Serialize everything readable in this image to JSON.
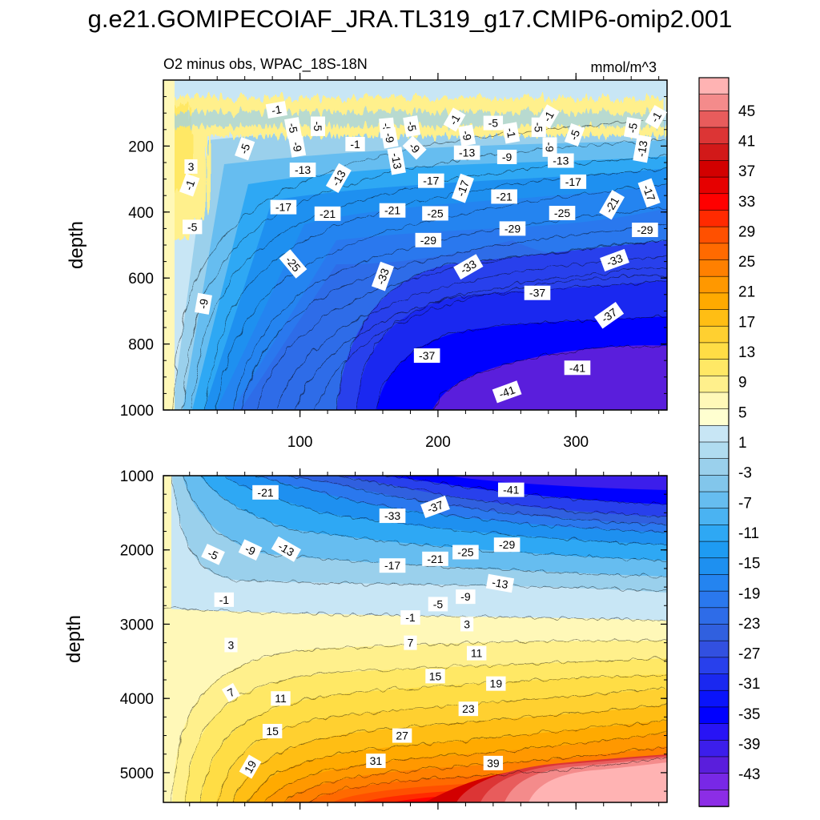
{
  "title": "g.e21.GOMIPECOIAF_JRA.TL319_g17.CMIP6-omip2.001",
  "chart_data": [
    {
      "type": "contour",
      "panel": "upper",
      "left_title": "O2 minus obs, WPAC_18S-18N",
      "right_title": "mmol/m^3",
      "ylabel": "depth",
      "xlabel": "",
      "xlim": [
        1,
        366
      ],
      "ylim": [
        1000,
        0
      ],
      "x_ticks": [
        100,
        200,
        300
      ],
      "y_ticks": [
        200,
        400,
        600,
        800,
        1000
      ],
      "y_tick_labels": [
        "200",
        "400",
        "600",
        "800",
        "1000"
      ],
      "x_tick_labels": [
        "100",
        "200",
        "300"
      ],
      "contour_labels": [
        {
          "text": "-1",
          "x": 83,
          "y": 90,
          "angle": -10
        },
        {
          "text": "-5",
          "x": 240,
          "y": 130,
          "angle": 0
        },
        {
          "text": "-1",
          "x": 212,
          "y": 120,
          "angle": -60
        },
        {
          "text": "-1",
          "x": 280,
          "y": 110,
          "angle": -60
        },
        {
          "text": "-1",
          "x": 358,
          "y": 112,
          "angle": -60
        },
        {
          "text": "-5",
          "x": 95,
          "y": 145,
          "angle": 80
        },
        {
          "text": "-5",
          "x": 113,
          "y": 140,
          "angle": 90
        },
        {
          "text": "-5",
          "x": 163,
          "y": 145,
          "angle": 85
        },
        {
          "text": "-5",
          "x": 181,
          "y": 140,
          "angle": 80
        },
        {
          "text": "-9",
          "x": 165,
          "y": 175,
          "angle": 80
        },
        {
          "text": "-5",
          "x": 273,
          "y": 143,
          "angle": 90
        },
        {
          "text": "-1",
          "x": 253,
          "y": 160,
          "angle": 80
        },
        {
          "text": "-5",
          "x": 299,
          "y": 166,
          "angle": -70
        },
        {
          "text": "-5",
          "x": 341,
          "y": 145,
          "angle": -80
        },
        {
          "text": "-9",
          "x": 221,
          "y": 168,
          "angle": 80
        },
        {
          "text": "-9",
          "x": 98,
          "y": 202,
          "angle": 80
        },
        {
          "text": "-1",
          "x": 140,
          "y": 194,
          "angle": 0
        },
        {
          "text": "-9",
          "x": 183,
          "y": 205,
          "angle": 45
        },
        {
          "text": "-5",
          "x": 60,
          "y": 208,
          "angle": -70
        },
        {
          "text": "-9",
          "x": 281,
          "y": 203,
          "angle": 90
        },
        {
          "text": "-13",
          "x": 170,
          "y": 245,
          "angle": 80
        },
        {
          "text": "-13",
          "x": 221,
          "y": 220,
          "angle": 0
        },
        {
          "text": "-9",
          "x": 250,
          "y": 233,
          "angle": 0
        },
        {
          "text": "-13",
          "x": 289,
          "y": 244,
          "angle": 0
        },
        {
          "text": "-13",
          "x": 348,
          "y": 208,
          "angle": -80
        },
        {
          "text": "3",
          "x": 21,
          "y": 262,
          "angle": 0
        },
        {
          "text": "-1",
          "x": 20,
          "y": 318,
          "angle": -70
        },
        {
          "text": "-13",
          "x": 102,
          "y": 272,
          "angle": 0
        },
        {
          "text": "-13",
          "x": 128,
          "y": 297,
          "angle": -60
        },
        {
          "text": "-17",
          "x": 195,
          "y": 305,
          "angle": 0
        },
        {
          "text": "-17",
          "x": 218,
          "y": 328,
          "angle": -70
        },
        {
          "text": "-17",
          "x": 298,
          "y": 308,
          "angle": 0
        },
        {
          "text": "-17",
          "x": 353,
          "y": 342,
          "angle": 70
        },
        {
          "text": "-21",
          "x": 248,
          "y": 353,
          "angle": 0
        },
        {
          "text": "-17",
          "x": 88,
          "y": 385,
          "angle": 0
        },
        {
          "text": "-21",
          "x": 120,
          "y": 405,
          "angle": 0
        },
        {
          "text": "-21",
          "x": 167,
          "y": 395,
          "angle": 0
        },
        {
          "text": "-25",
          "x": 198,
          "y": 404,
          "angle": 0
        },
        {
          "text": "-25",
          "x": 290,
          "y": 403,
          "angle": 0
        },
        {
          "text": "-21",
          "x": 326,
          "y": 378,
          "angle": -60
        },
        {
          "text": "-5",
          "x": 22,
          "y": 445,
          "angle": 0
        },
        {
          "text": "-29",
          "x": 193,
          "y": 485,
          "angle": 0
        },
        {
          "text": "-29",
          "x": 254,
          "y": 450,
          "angle": 0
        },
        {
          "text": "-29",
          "x": 350,
          "y": 454,
          "angle": 0
        },
        {
          "text": "-25",
          "x": 95,
          "y": 557,
          "angle": 50
        },
        {
          "text": "-33",
          "x": 160,
          "y": 595,
          "angle": -70
        },
        {
          "text": "-33",
          "x": 222,
          "y": 566,
          "angle": -30
        },
        {
          "text": "-33",
          "x": 328,
          "y": 546,
          "angle": -20
        },
        {
          "text": "-9",
          "x": 30,
          "y": 678,
          "angle": -80
        },
        {
          "text": "-37",
          "x": 272,
          "y": 645,
          "angle": 0
        },
        {
          "text": "-37",
          "x": 324,
          "y": 713,
          "angle": -35
        },
        {
          "text": "-37",
          "x": 192,
          "y": 835,
          "angle": 0
        },
        {
          "text": "-41",
          "x": 301,
          "y": 872,
          "angle": 0
        },
        {
          "text": "-41",
          "x": 250,
          "y": 945,
          "angle": -20
        }
      ]
    },
    {
      "type": "contour",
      "panel": "lower",
      "left_title": "",
      "right_title": "",
      "ylabel": "depth",
      "xlabel": "",
      "xlim": [
        1,
        366
      ],
      "ylim": [
        5400,
        1000
      ],
      "x_ticks": [
        100,
        200,
        300
      ],
      "y_ticks": [
        1000,
        2000,
        3000,
        4000,
        5000
      ],
      "y_tick_labels": [
        "1000",
        "2000",
        "3000",
        "4000",
        "5000"
      ],
      "contour_labels": [
        {
          "text": "-41",
          "x": 253,
          "y": 1190,
          "angle": 0
        },
        {
          "text": "-21",
          "x": 75,
          "y": 1225,
          "angle": 0
        },
        {
          "text": "-37",
          "x": 198,
          "y": 1420,
          "angle": -20
        },
        {
          "text": "-33",
          "x": 167,
          "y": 1540,
          "angle": 0
        },
        {
          "text": "-29",
          "x": 250,
          "y": 1930,
          "angle": 0
        },
        {
          "text": "-25",
          "x": 220,
          "y": 2030,
          "angle": 0
        },
        {
          "text": "-21",
          "x": 198,
          "y": 2120,
          "angle": 0
        },
        {
          "text": "-5",
          "x": 37,
          "y": 2060,
          "angle": 25
        },
        {
          "text": "-9",
          "x": 64,
          "y": 2000,
          "angle": 25
        },
        {
          "text": "-13",
          "x": 90,
          "y": 1990,
          "angle": 30
        },
        {
          "text": "-17",
          "x": 167,
          "y": 2210,
          "angle": 0
        },
        {
          "text": "-13",
          "x": 245,
          "y": 2450,
          "angle": 10
        },
        {
          "text": "-9",
          "x": 220,
          "y": 2630,
          "angle": 0
        },
        {
          "text": "-5",
          "x": 200,
          "y": 2730,
          "angle": 0
        },
        {
          "text": "-1",
          "x": 45,
          "y": 2670,
          "angle": 0
        },
        {
          "text": "-1",
          "x": 180,
          "y": 2910,
          "angle": 0
        },
        {
          "text": "3",
          "x": 221,
          "y": 3000,
          "angle": 0
        },
        {
          "text": "3",
          "x": 50,
          "y": 3280,
          "angle": 0
        },
        {
          "text": "7",
          "x": 180,
          "y": 3250,
          "angle": 0
        },
        {
          "text": "11",
          "x": 228,
          "y": 3390,
          "angle": 0
        },
        {
          "text": "15",
          "x": 198,
          "y": 3700,
          "angle": 0
        },
        {
          "text": "19",
          "x": 242,
          "y": 3800,
          "angle": 0
        },
        {
          "text": "7",
          "x": 50,
          "y": 3920,
          "angle": -30
        },
        {
          "text": "11",
          "x": 86,
          "y": 4000,
          "angle": 0
        },
        {
          "text": "23",
          "x": 222,
          "y": 4140,
          "angle": 0
        },
        {
          "text": "15",
          "x": 80,
          "y": 4440,
          "angle": 0
        },
        {
          "text": "27",
          "x": 174,
          "y": 4500,
          "angle": 0
        },
        {
          "text": "31",
          "x": 155,
          "y": 4840,
          "angle": 0
        },
        {
          "text": "39",
          "x": 240,
          "y": 4870,
          "angle": 0
        },
        {
          "text": "19",
          "x": 64,
          "y": 4920,
          "angle": -60
        }
      ]
    }
  ],
  "colorbar": {
    "levels": [
      45,
      41,
      37,
      33,
      29,
      25,
      21,
      17,
      13,
      9,
      5,
      1,
      -3,
      -7,
      -11,
      -15,
      -19,
      -23,
      -27,
      -31,
      -35,
      -39,
      -43
    ],
    "labels": [
      "45",
      "41",
      "37",
      "33",
      "29",
      "25",
      "21",
      "17",
      "13",
      "9",
      "5",
      "1",
      "-3",
      "-7",
      "-11",
      "-15",
      "-19",
      "-23",
      "-27",
      "-31",
      "-35",
      "-39",
      "-43"
    ],
    "colors": [
      "#FFB3B3",
      "#F48B8B",
      "#E85C5C",
      "#DC3535",
      "#D21919",
      "#D20000",
      "#E60000",
      "#FF0000",
      "#FF2A00",
      "#FF5000",
      "#FF6A00",
      "#FF8000",
      "#FF9800",
      "#FFAA00",
      "#FFBE14",
      "#FFD030",
      "#FFDD45",
      "#FFE865",
      "#FFF08C",
      "#FFF8B8",
      "#FFFFD0",
      "#C8E6F5",
      "#B0DCF0",
      "#9AD0EC",
      "#82C6EB",
      "#66BDF0",
      "#4AB3F2",
      "#2EA8F4",
      "#1E9BF2",
      "#1E90F0",
      "#2484F0",
      "#2A78EE",
      "#2E6CE8",
      "#3060DF",
      "#3250E0",
      "#2840EC",
      "#1A28F0",
      "#0A14FA",
      "#0000FF",
      "#2814F5",
      "#3C1EEB",
      "#5A1EDC",
      "#7828E6",
      "#8C2DE6"
    ]
  }
}
